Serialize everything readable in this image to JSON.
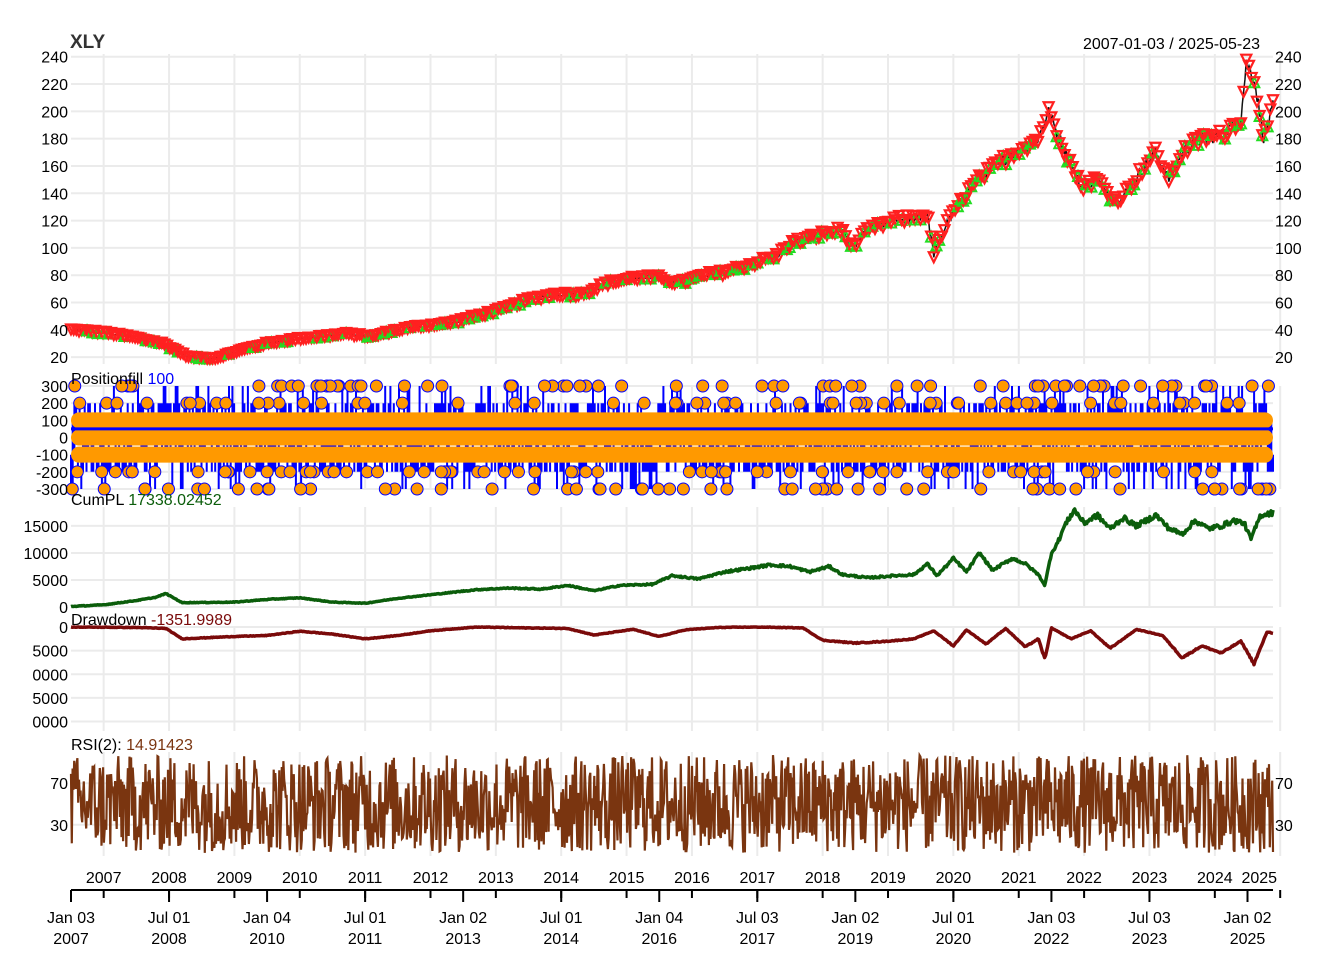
{
  "chart_data": {
    "type": "line",
    "title": "XLY",
    "date_range_label": "2007-01-03 / 2025-05-23",
    "x_start": "2007-01-03",
    "x_end": "2025-05-23",
    "colors": {
      "grid": "#ebebeb",
      "price": "#ff2020",
      "price_buy_marker": "#22dd22",
      "price_sell_marker": "#ff2020",
      "position_line": "#0000ff",
      "position_points": "#ff9900",
      "cumpl": "#0b5d0b",
      "drawdown": "#7a0a0a",
      "rsi": "#7a3510"
    },
    "year_labels": [
      "2007",
      "2008",
      "2009",
      "2010",
      "2011",
      "2012",
      "2013",
      "2014",
      "2015",
      "2016",
      "2017",
      "2018",
      "2019",
      "2020",
      "2021",
      "2022",
      "2023",
      "2024",
      "2025"
    ],
    "date_ticks": [
      {
        "month": "Jan 03",
        "year": "2007"
      },
      {
        "month": "Jul 01",
        "year": "2008"
      },
      {
        "month": "Jan 04",
        "year": "2010"
      },
      {
        "month": "Jul 01",
        "year": "2011"
      },
      {
        "month": "Jan 02",
        "year": "2013"
      },
      {
        "month": "Jul 01",
        "year": "2014"
      },
      {
        "month": "Jan 04",
        "year": "2016"
      },
      {
        "month": "Jul 03",
        "year": "2017"
      },
      {
        "month": "Jan 02",
        "year": "2019"
      },
      {
        "month": "Jul 01",
        "year": "2020"
      },
      {
        "month": "Jan 03",
        "year": "2022"
      },
      {
        "month": "Jul 03",
        "year": "2023"
      },
      {
        "month": "Jan 02",
        "year": "2025"
      }
    ],
    "panels": [
      {
        "id": "price",
        "label": "",
        "ylim": [
          15,
          242
        ],
        "left_ticks": [
          "240",
          "220",
          "200",
          "180",
          "160",
          "140",
          "120",
          "100",
          "80",
          "60",
          "40",
          "20"
        ],
        "right_ticks": [
          "240",
          "220",
          "200",
          "180",
          "160",
          "140",
          "120",
          "100",
          "80",
          "60",
          "40",
          "20"
        ],
        "series": [
          {
            "values_time_year": [
              2007.0,
              2007.5,
              2007.9,
              2008.4,
              2008.8,
              2009.2,
              2009.6,
              2010.0,
              2010.4,
              2010.8,
              2011.2,
              2011.6,
              2012.0,
              2012.4,
              2012.8,
              2013.2,
              2013.6,
              2014.0,
              2014.4,
              2014.8,
              2015.2,
              2015.6,
              2016.0,
              2016.3,
              2016.7,
              2017.0,
              2017.4,
              2017.8,
              2018.0,
              2018.5,
              2018.8,
              2018.95,
              2019.2,
              2019.6,
              2019.9,
              2020.1,
              2020.2,
              2020.4,
              2020.7,
              2020.9,
              2021.2,
              2021.5,
              2021.8,
              2021.95,
              2022.2,
              2022.45,
              2022.7,
              2022.95,
              2023.1,
              2023.4,
              2023.6,
              2023.8,
              2024.0,
              2024.3,
              2024.6,
              2024.9,
              2024.98,
              2025.1,
              2025.25,
              2025.4
            ],
            "values": [
              40,
              38,
              35,
              30,
              20,
              19,
              25,
              30,
              33,
              35,
              37,
              35,
              40,
              43,
              45,
              50,
              55,
              62,
              66,
              66,
              74,
              78,
              78,
              74,
              80,
              82,
              88,
              94,
              103,
              110,
              113,
              100,
              113,
              120,
              122,
              125,
              95,
              118,
              140,
              150,
              162,
              172,
              180,
              200,
              172,
              145,
              150,
              135,
              138,
              158,
              170,
              150,
              170,
              180,
              182,
              195,
              235,
              225,
              180,
              205
            ]
          }
        ]
      },
      {
        "id": "positionfill",
        "label": "Positionfill",
        "value": "100",
        "ylim": [
          -300,
          300
        ],
        "left_ticks": [
          "300",
          "200",
          "100",
          "0",
          "-100",
          "-200",
          "-300"
        ],
        "right_ticks": []
      },
      {
        "id": "cumpl",
        "label": "CumPL",
        "value": "17338.02452",
        "ylim": [
          0,
          18500
        ],
        "left_ticks": [
          "15000",
          "10000",
          "5000",
          "0"
        ],
        "right_ticks": [],
        "series": [
          {
            "values_time_year": [
              2007.0,
              2007.5,
              2008.0,
              2008.3,
              2008.45,
              2008.7,
              2009.5,
              2010.0,
              2010.5,
              2011.0,
              2011.5,
              2012.0,
              2012.6,
              2013.2,
              2013.7,
              2014.2,
              2014.6,
              2015.0,
              2015.4,
              2015.9,
              2016.2,
              2016.6,
              2017.0,
              2017.4,
              2017.7,
              2018.0,
              2018.3,
              2018.6,
              2018.8,
              2019.2,
              2019.6,
              2019.9,
              2020.1,
              2020.25,
              2020.5,
              2020.7,
              2020.9,
              2021.1,
              2021.4,
              2021.6,
              2021.8,
              2021.9,
              2022.0,
              2022.1,
              2022.2,
              2022.35,
              2022.5,
              2022.7,
              2022.9,
              2023.1,
              2023.3,
              2023.6,
              2023.8,
              2024.0,
              2024.2,
              2024.4,
              2024.6,
              2024.8,
              2024.95,
              2025.05,
              2025.2,
              2025.4
            ],
            "values": [
              100,
              400,
              1200,
              1800,
              2500,
              800,
              900,
              1400,
              1700,
              900,
              700,
              1600,
              2400,
              3200,
              3500,
              3300,
              4000,
              3000,
              4000,
              4200,
              5800,
              5200,
              6500,
              7200,
              7800,
              7500,
              6500,
              7500,
              6000,
              5400,
              5800,
              6000,
              8000,
              5800,
              9000,
              6500,
              10000,
              6800,
              9000,
              8000,
              6000,
              4000,
              10000,
              12000,
              15000,
              18000,
              15500,
              17000,
              14500,
              16500,
              15000,
              17000,
              14500,
              13500,
              16000,
              14500,
              15000,
              16000,
              15500,
              12500,
              17000,
              17500
            ]
          }
        ]
      },
      {
        "id": "drawdown",
        "label": "Drawdown",
        "value": "-1351.9989",
        "ylim": [
          -22000,
          0
        ],
        "left_ticks": [
          "0",
          "5000",
          "0000",
          "5000",
          "0000"
        ],
        "right_ticks": [],
        "series": [
          {
            "values_time_year": [
              2007.0,
              2008.0,
              2008.45,
              2008.7,
              2009.5,
              2010.0,
              2010.5,
              2011.0,
              2011.5,
              2012.0,
              2012.5,
              2013.2,
              2014.0,
              2014.6,
              2015.0,
              2015.6,
              2016.0,
              2016.4,
              2016.9,
              2017.5,
              2018.2,
              2018.5,
              2019.0,
              2019.5,
              2019.9,
              2020.2,
              2020.5,
              2020.7,
              2021.0,
              2021.3,
              2021.6,
              2021.8,
              2021.9,
              2022.0,
              2022.3,
              2022.6,
              2022.9,
              2023.3,
              2023.7,
              2024.0,
              2024.3,
              2024.6,
              2024.9,
              2025.1,
              2025.3,
              2025.4
            ],
            "values": [
              0,
              -100,
              -300,
              -2500,
              -2000,
              -1800,
              -900,
              -1500,
              -2500,
              -1800,
              -800,
              0,
              -200,
              -300,
              -1700,
              -500,
              -2000,
              -600,
              -100,
              0,
              -200,
              -2800,
              -3400,
              -3000,
              -2500,
              -800,
              -4000,
              -600,
              -3600,
              -300,
              -4200,
              -2500,
              -6800,
              -200,
              -2500,
              -800,
              -4500,
              -500,
              -1800,
              -6500,
              -4000,
              -5500,
              -3000,
              -7800,
              -1000,
              -1350
            ]
          }
        ]
      },
      {
        "id": "rsi",
        "label": "RSI(2):",
        "value": "14.91423",
        "ylim": [
          0,
          100
        ],
        "left_ticks": [
          "70",
          "30"
        ],
        "right_ticks": [
          "70",
          "30"
        ]
      }
    ]
  }
}
